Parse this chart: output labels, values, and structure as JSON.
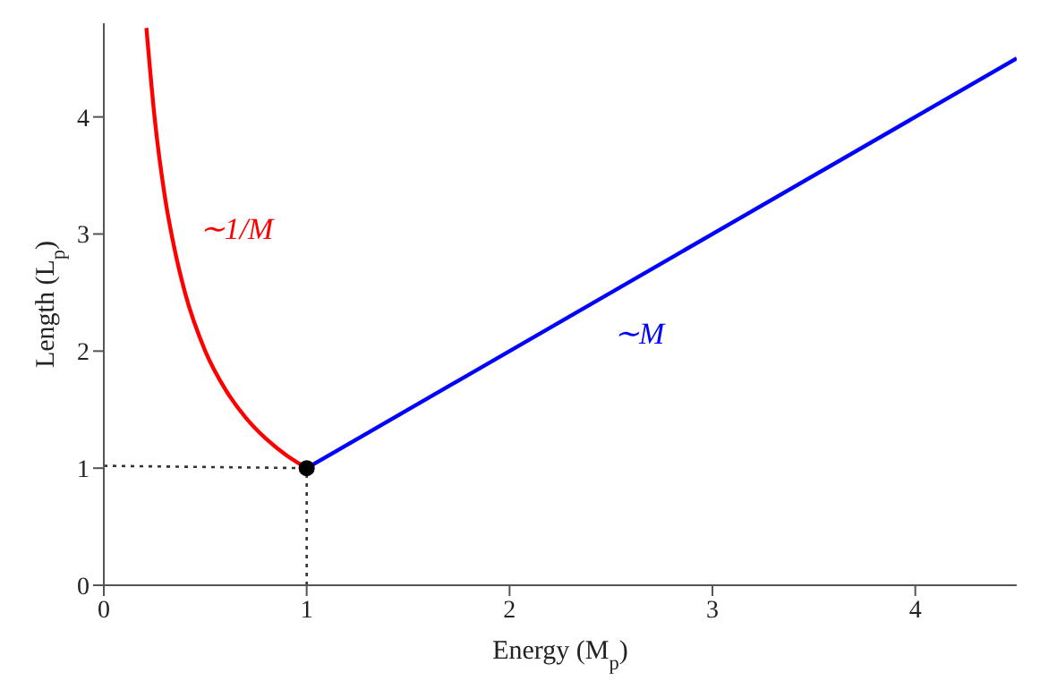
{
  "chart_data": {
    "type": "line",
    "xlabel": "Energy (M$_{p}$)",
    "ylabel": "Length (L$_{p}$)",
    "xlim": [
      0,
      4.5
    ],
    "ylim": [
      0,
      4.8
    ],
    "xticks": [
      0,
      1,
      2,
      3,
      4
    ],
    "yticks": [
      0,
      1,
      2,
      3,
      4
    ],
    "grid": false,
    "legend": false,
    "marker": "none",
    "line_style": "solid",
    "series": [
      {
        "name": "∼1/M",
        "color": "#ff0000",
        "x": [
          0.21,
          0.25,
          0.3,
          0.35,
          0.4,
          0.5,
          0.6,
          0.7,
          0.8,
          0.9,
          1
        ],
        "values": [
          4.76,
          4,
          3.33,
          2.86,
          2.5,
          2,
          1.67,
          1.43,
          1.25,
          1.11,
          1
        ]
      },
      {
        "name": "∼M",
        "color": "#0000ff",
        "x": [
          1,
          4.5
        ],
        "values": [
          1,
          4.5
        ]
      },
      {
        "color": "#333333",
        "line_style": "dotted",
        "x": [
          0,
          1
        ],
        "values": [
          1.02,
          1
        ]
      },
      {
        "color": "#333333",
        "line_style": "dotted",
        "x": [
          1,
          1
        ],
        "values": [
          0,
          1
        ]
      },
      {
        "type": "scatter",
        "marker": "circle",
        "color": "#000000",
        "x": [
          1
        ],
        "values": [
          1
        ]
      }
    ]
  }
}
